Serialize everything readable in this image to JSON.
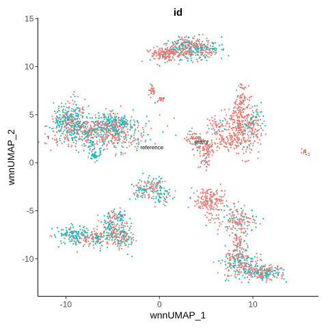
{
  "chart_data": {
    "type": "scatter",
    "title": "id",
    "xlabel": "wnnUMAP_1",
    "ylabel": "wnnUMAP_2",
    "xlim": [
      -13,
      17
    ],
    "ylim": [
      -13.9,
      15.1
    ],
    "xticks": [
      -10,
      0,
      10
    ],
    "xtick_labels": [
      "-10",
      "0",
      "10"
    ],
    "yticks": [
      -10,
      -5,
      0,
      5,
      10,
      15
    ],
    "ytick_labels": [
      "-10",
      "-5",
      "0",
      "5",
      "10",
      "15"
    ],
    "grid": false,
    "legend": "none",
    "series": [
      {
        "name": "query",
        "color": "#F8766D"
      },
      {
        "name": "reference",
        "color": "#00BFC4"
      }
    ],
    "annotations": [
      {
        "text": "reference",
        "x": -0.8,
        "y": 1.4
      },
      {
        "text": "query",
        "x": 4.5,
        "y": 2.0
      }
    ],
    "clusters": [
      {
        "cx": -9.5,
        "cy": 4.5,
        "sx": 0.9,
        "sy": 1.0,
        "n": 260,
        "ref": 0.6
      },
      {
        "cx": -6.5,
        "cy": 3.2,
        "sx": 2.6,
        "sy": 0.9,
        "n": 650,
        "ref": 0.4
      },
      {
        "cx": -4.8,
        "cy": 4.3,
        "sx": 0.8,
        "sy": 0.5,
        "n": 150,
        "ref": 0.6
      },
      {
        "cx": -7.0,
        "cy": 0.8,
        "sx": 0.4,
        "sy": 0.3,
        "n": 40,
        "ref": 0.8
      },
      {
        "cx": 0.8,
        "cy": 11.3,
        "sx": 0.9,
        "sy": 0.4,
        "n": 180,
        "ref": 0.15
      },
      {
        "cx": 2.8,
        "cy": 12.1,
        "sx": 1.0,
        "sy": 0.5,
        "n": 200,
        "ref": 0.3
      },
      {
        "cx": 4.5,
        "cy": 11.7,
        "sx": 1.2,
        "sy": 0.5,
        "n": 160,
        "ref": 0.55
      },
      {
        "cx": -0.8,
        "cy": 7.6,
        "sx": 0.2,
        "sy": 0.3,
        "n": 25,
        "ref": 0.1
      },
      {
        "cx": 0.2,
        "cy": 6.6,
        "sx": 0.3,
        "sy": 0.2,
        "n": 20,
        "ref": 0.1
      },
      {
        "cx": 3.8,
        "cy": 2.5,
        "sx": 0.5,
        "sy": 0.5,
        "n": 60,
        "ref": 0.2
      },
      {
        "cx": 5.0,
        "cy": 1.5,
        "sx": 0.6,
        "sy": 0.5,
        "n": 60,
        "ref": 0.1
      },
      {
        "cx": 5.0,
        "cy": 0.5,
        "sx": 0.4,
        "sy": 0.6,
        "n": 40,
        "ref": 0.1
      },
      {
        "cx": 7.0,
        "cy": 2.3,
        "sx": 0.9,
        "sy": 0.5,
        "n": 80,
        "ref": 0.05
      },
      {
        "cx": 8.8,
        "cy": 3.6,
        "sx": 1.0,
        "sy": 1.4,
        "n": 300,
        "ref": 0.08
      },
      {
        "cx": 10.0,
        "cy": 4.0,
        "sx": 0.5,
        "sy": 0.8,
        "n": 80,
        "ref": 0.35
      },
      {
        "cx": 8.7,
        "cy": 6.5,
        "sx": 0.3,
        "sy": 0.8,
        "n": 60,
        "ref": 0.05
      },
      {
        "cx": 6.0,
        "cy": 3.8,
        "sx": 0.5,
        "sy": 0.4,
        "n": 40,
        "ref": 0.1
      },
      {
        "cx": -2.1,
        "cy": -3.0,
        "sx": 0.4,
        "sy": 0.5,
        "n": 50,
        "ref": 0.6
      },
      {
        "cx": -0.6,
        "cy": -2.5,
        "sx": 0.6,
        "sy": 0.6,
        "n": 90,
        "ref": 0.35
      },
      {
        "cx": 0.3,
        "cy": -3.4,
        "sx": 0.5,
        "sy": 0.4,
        "n": 50,
        "ref": 0.6
      },
      {
        "cx": 5.3,
        "cy": -4.0,
        "sx": 0.8,
        "sy": 0.8,
        "n": 180,
        "ref": 0.05
      },
      {
        "cx": 8.5,
        "cy": -6.0,
        "sx": 1.0,
        "sy": 0.8,
        "n": 150,
        "ref": 0.3
      },
      {
        "cx": 8.5,
        "cy": -8.5,
        "sx": 0.35,
        "sy": 0.8,
        "n": 60,
        "ref": 0.1
      },
      {
        "cx": 8.6,
        "cy": -10.4,
        "sx": 0.9,
        "sy": 0.7,
        "n": 220,
        "ref": 0.45
      },
      {
        "cx": 11.0,
        "cy": -11.4,
        "sx": 1.1,
        "sy": 0.4,
        "n": 200,
        "ref": 0.4
      },
      {
        "cx": -9.0,
        "cy": -7.5,
        "sx": 0.9,
        "sy": 0.5,
        "n": 130,
        "ref": 0.75
      },
      {
        "cx": -6.5,
        "cy": -7.8,
        "sx": 1.3,
        "sy": 0.5,
        "n": 170,
        "ref": 0.35
      },
      {
        "cx": -5.2,
        "cy": -6.3,
        "sx": 0.5,
        "sy": 0.6,
        "n": 90,
        "ref": 0.5
      },
      {
        "cx": -4.0,
        "cy": -7.5,
        "sx": 0.7,
        "sy": 0.7,
        "n": 130,
        "ref": 0.4
      },
      {
        "cx": -4.2,
        "cy": -5.6,
        "sx": 0.35,
        "sy": 0.4,
        "n": 40,
        "ref": 0.7
      },
      {
        "cx": 15.5,
        "cy": 1.2,
        "sx": 0.25,
        "sy": 0.2,
        "n": 15,
        "ref": 0.1
      }
    ]
  }
}
